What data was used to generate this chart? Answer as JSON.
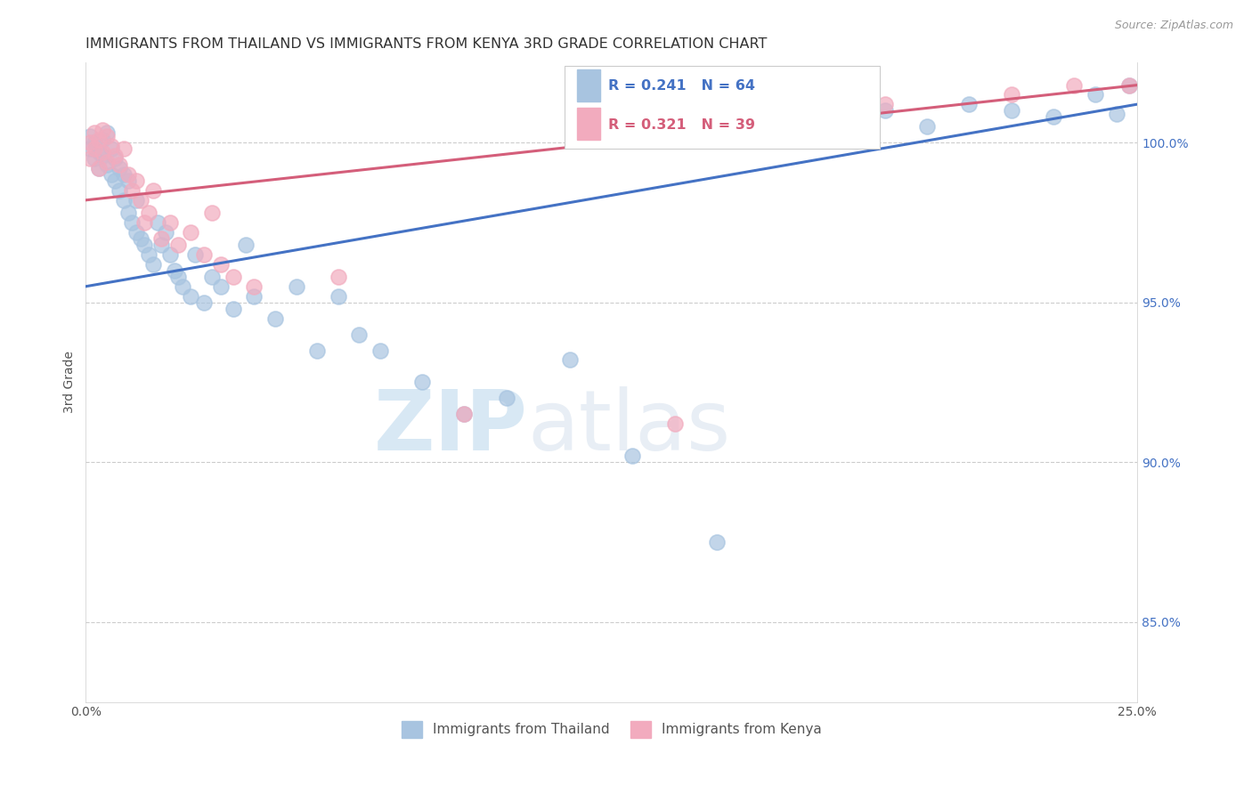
{
  "title": "IMMIGRANTS FROM THAILAND VS IMMIGRANTS FROM KENYA 3RD GRADE CORRELATION CHART",
  "source": "Source: ZipAtlas.com",
  "ylabel": "3rd Grade",
  "ylabel_right_ticks": [
    85.0,
    90.0,
    95.0,
    100.0
  ],
  "xmin": 0.0,
  "xmax": 0.25,
  "ymin": 82.5,
  "ymax": 102.5,
  "legend_label_thailand": "Immigrants from Thailand",
  "legend_label_kenya": "Immigrants from Kenya",
  "color_thailand": "#A8C4E0",
  "color_kenya": "#F2ABBE",
  "line_color_thailand": "#4472C4",
  "line_color_kenya": "#D45E7A",
  "thailand_scatter_x": [
    0.001,
    0.001,
    0.002,
    0.002,
    0.003,
    0.003,
    0.004,
    0.004,
    0.005,
    0.005,
    0.006,
    0.006,
    0.007,
    0.007,
    0.008,
    0.008,
    0.009,
    0.009,
    0.01,
    0.01,
    0.011,
    0.012,
    0.012,
    0.013,
    0.014,
    0.015,
    0.016,
    0.017,
    0.018,
    0.019,
    0.02,
    0.021,
    0.022,
    0.023,
    0.025,
    0.026,
    0.028,
    0.03,
    0.032,
    0.035,
    0.038,
    0.04,
    0.045,
    0.05,
    0.055,
    0.06,
    0.065,
    0.07,
    0.08,
    0.09,
    0.1,
    0.115,
    0.13,
    0.15,
    0.16,
    0.175,
    0.19,
    0.2,
    0.21,
    0.22,
    0.23,
    0.24,
    0.245,
    0.248
  ],
  "thailand_scatter_y": [
    99.8,
    100.2,
    99.5,
    100.0,
    99.2,
    99.7,
    100.1,
    99.6,
    99.3,
    100.3,
    99.0,
    99.8,
    98.8,
    99.5,
    98.5,
    99.2,
    98.2,
    99.0,
    97.8,
    98.8,
    97.5,
    97.2,
    98.2,
    97.0,
    96.8,
    96.5,
    96.2,
    97.5,
    96.8,
    97.2,
    96.5,
    96.0,
    95.8,
    95.5,
    95.2,
    96.5,
    95.0,
    95.8,
    95.5,
    94.8,
    96.8,
    95.2,
    94.5,
    95.5,
    93.5,
    95.2,
    94.0,
    93.5,
    92.5,
    91.5,
    92.0,
    93.2,
    90.2,
    87.5,
    100.2,
    100.8,
    101.0,
    100.5,
    101.2,
    101.0,
    100.8,
    101.5,
    100.9,
    101.8
  ],
  "kenya_scatter_x": [
    0.001,
    0.001,
    0.002,
    0.002,
    0.003,
    0.003,
    0.004,
    0.004,
    0.005,
    0.005,
    0.006,
    0.007,
    0.008,
    0.009,
    0.01,
    0.011,
    0.012,
    0.013,
    0.014,
    0.015,
    0.016,
    0.018,
    0.02,
    0.022,
    0.025,
    0.028,
    0.03,
    0.032,
    0.035,
    0.04,
    0.06,
    0.09,
    0.12,
    0.14,
    0.16,
    0.19,
    0.22,
    0.235,
    0.248
  ],
  "kenya_scatter_y": [
    99.5,
    100.0,
    99.8,
    100.3,
    99.2,
    100.1,
    99.7,
    100.4,
    99.4,
    100.2,
    99.9,
    99.6,
    99.3,
    99.8,
    99.0,
    98.5,
    98.8,
    98.2,
    97.5,
    97.8,
    98.5,
    97.0,
    97.5,
    96.8,
    97.2,
    96.5,
    97.8,
    96.2,
    95.8,
    95.5,
    95.8,
    91.5,
    100.5,
    91.2,
    101.0,
    101.2,
    101.5,
    101.8,
    101.8
  ],
  "thailand_trend_x": [
    0.0,
    0.25
  ],
  "thailand_trend_y": [
    95.5,
    101.2
  ],
  "kenya_trend_x": [
    0.0,
    0.25
  ],
  "kenya_trend_y": [
    98.2,
    101.8
  ],
  "watermark_zip": "ZIP",
  "watermark_atlas": "atlas",
  "title_fontsize": 11.5,
  "axis_label_fontsize": 10,
  "tick_fontsize": 10
}
